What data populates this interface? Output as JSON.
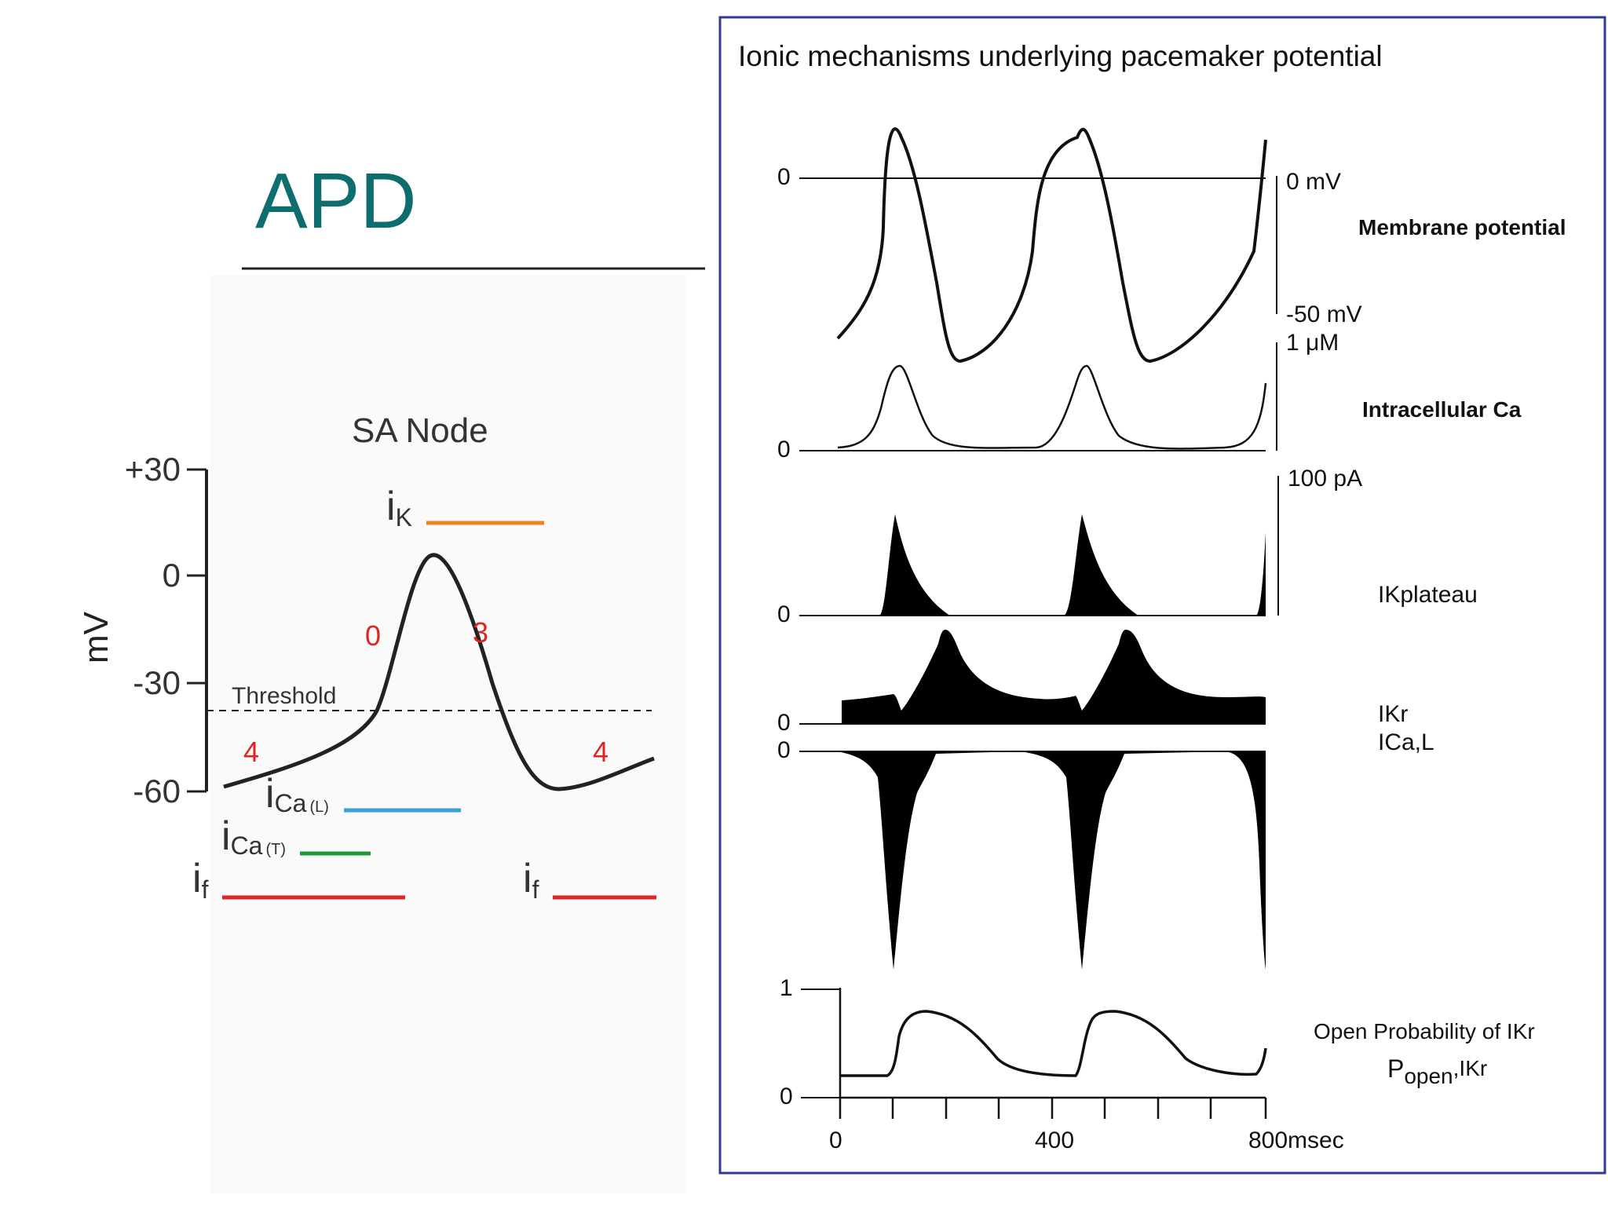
{
  "slide": {
    "title": "APD"
  },
  "sa_node": {
    "title": "SA Node",
    "ylabel": "mV",
    "yticks": [
      "+30",
      "0",
      "-30",
      "-60"
    ],
    "threshold_label": "Threshold",
    "phase_labels": {
      "phase0": "0",
      "phase3": "3",
      "phase4_left": "4",
      "phase4_right": "4"
    },
    "currents": {
      "ik": {
        "main": "i",
        "sub": "K",
        "color": "#f0821e"
      },
      "ica_l": {
        "main": "i",
        "sub": "Ca",
        "qual": "(L)",
        "color": "#3aa0dc"
      },
      "ica_t": {
        "main": "i",
        "sub": "Ca",
        "qual": "(T)",
        "color": "#1f9a3a"
      },
      "if_left": {
        "main": "i",
        "sub": "f",
        "color": "#e02424"
      },
      "if_right": {
        "main": "i",
        "sub": "f",
        "color": "#e02424"
      }
    }
  },
  "ionic_panel": {
    "title": "Ionic mechanisms underlying pacemaker potential",
    "frame_color": "#2d3a99",
    "membrane": {
      "zero_label": "0",
      "scale_top": "0 mV",
      "scale_bottom": "-50 mV",
      "name": "Membrane potential"
    },
    "calcium": {
      "scale_top": "1 μM",
      "zero_label": "0",
      "name": "Intracellular Ca"
    },
    "ikplateau": {
      "scale_top": "100 pA",
      "zero_label": "0",
      "name": "IKplateau"
    },
    "ikr": {
      "zero_label": "0",
      "name": "IKr"
    },
    "ical": {
      "zero_label": "0",
      "name": "ICa,L"
    },
    "popen": {
      "y_top": "1",
      "y_bottom": "0",
      "name": "Open Probability of IKr",
      "symbol_main": "P",
      "symbol_sub": "open",
      "symbol_suffix": ",IKr"
    },
    "xaxis": {
      "ticks": [
        "0",
        "400",
        "800msec"
      ]
    }
  }
}
